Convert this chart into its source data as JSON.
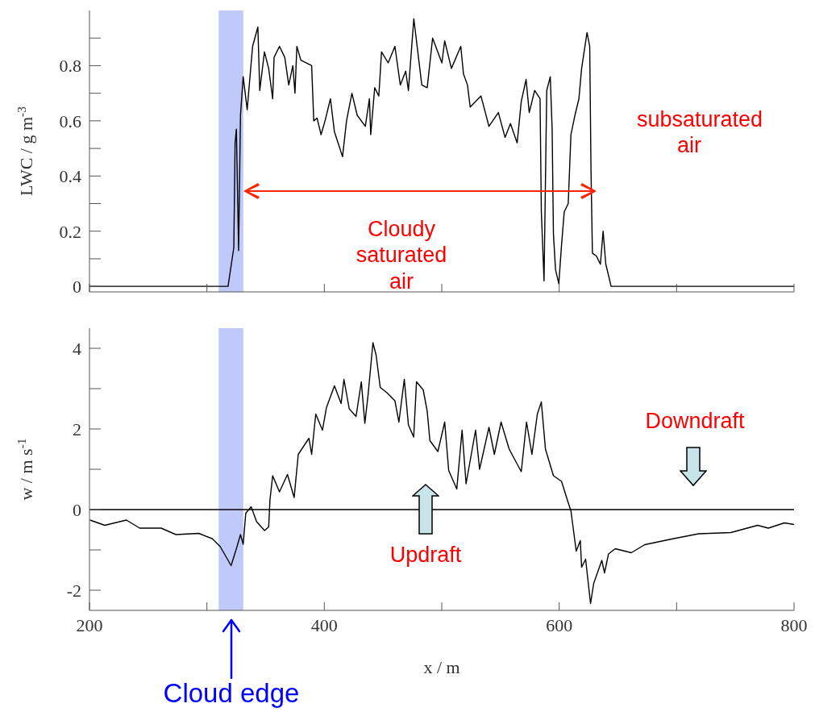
{
  "chart_data": [
    {
      "type": "line",
      "ylabel": "LWC / g m$^{-3}$",
      "tick_labels": "y",
      "xlim": [
        200,
        800
      ],
      "xticks": [
        200,
        {
          "value": 300,
          "label": null
        },
        400,
        {
          "value": 500,
          "label": null
        },
        600,
        {
          "value": 700,
          "label": null
        },
        800
      ],
      "ylim": [
        -0.02,
        1
      ],
      "yticks": [
        0,
        {
          "value": 0.1,
          "label": null
        },
        0.2,
        {
          "value": 0.3,
          "label": null
        },
        0.4,
        {
          "value": 0.5,
          "label": null
        },
        0.6,
        {
          "value": 0.7,
          "label": null
        },
        0.8,
        {
          "value": 0.9,
          "label": null
        }
      ],
      "bands": [
        {
          "axis": "x",
          "from": 310,
          "to": 331,
          "color": "#bfcafa"
        }
      ],
      "annotations": [
        "Cloudy saturated air",
        "subsaturated air"
      ],
      "x": [
        200,
        250,
        300,
        318,
        322.9,
        324,
        325.1,
        327,
        328.6,
        330.9,
        334.3,
        338.9,
        343.4,
        345,
        349,
        352.6,
        356,
        357.2,
        361.8,
        366.3,
        369.7,
        373.2,
        375,
        376.6,
        380,
        389.2,
        391,
        393.8,
        397.2,
        400.6,
        405.2,
        408.6,
        412.5,
        415.5,
        418.9,
        423.5,
        428,
        434.9,
        438.4,
        439.5,
        442.9,
        446.4,
        448.7,
        454.4,
        460.1,
        464.7,
        469.3,
        471.6,
        476.2,
        483,
        487.6,
        492.2,
        500.1,
        502.5,
        508.2,
        516.2,
        518.5,
        521.9,
        524.2,
        533.4,
        540.2,
        548.2,
        553.9,
        558.5,
        564.2,
        567.7,
        571.8,
        574.5,
        579.1,
        583.7,
        584.8,
        587.1,
        589.4,
        592.4,
        594,
        595.1,
        596.9,
        599.7,
        602,
        604.3,
        607.7,
        610,
        613.4,
        616.8,
        619.1,
        623.7,
        626,
        627.1,
        628.3,
        631.7,
        635.1,
        637.4,
        639.7,
        642,
        644.2,
        700,
        800
      ],
      "series": [
        {
          "color": "#000000",
          "values": [
            0,
            0,
            0,
            0,
            0.14,
            0.52,
            0.57,
            0.13,
            0.62,
            0.76,
            0.64,
            0.87,
            0.94,
            0.71,
            0.85,
            0.79,
            0.68,
            0.83,
            0.87,
            0.83,
            0.73,
            0.8,
            0.7,
            0.87,
            0.82,
            0.8,
            0.6,
            0.61,
            0.55,
            0.6,
            0.68,
            0.56,
            0.51,
            0.47,
            0.6,
            0.7,
            0.62,
            0.58,
            0.68,
            0.55,
            0.72,
            0.69,
            0.85,
            0.81,
            0.87,
            0.73,
            0.78,
            0.71,
            0.97,
            0.73,
            0.72,
            0.9,
            0.81,
            0.89,
            0.79,
            0.87,
            0.77,
            0.73,
            0.65,
            0.69,
            0.58,
            0.63,
            0.54,
            0.59,
            0.52,
            0.67,
            0.75,
            0.63,
            0.71,
            0.68,
            0.27,
            0.02,
            0.71,
            0.76,
            0.57,
            0.19,
            0.06,
            0.01,
            0.15,
            0.27,
            0.3,
            0.55,
            0.62,
            0.68,
            0.79,
            0.92,
            0.87,
            0.42,
            0.12,
            0.11,
            0.08,
            0.2,
            0.08,
            0.04,
            0,
            0,
            0
          ]
        }
      ]
    },
    {
      "type": "line",
      "ylabel": "w / m s$^{-1}$",
      "xlabel": "x / m",
      "xlim": [
        200,
        800
      ],
      "xticks": [
        200,
        {
          "value": 300,
          "label": null
        },
        400,
        {
          "value": 500,
          "label": null
        },
        600,
        {
          "value": 700,
          "label": null
        },
        800
      ],
      "ylim": [
        -2.5,
        4.5
      ],
      "yticks": [
        -2,
        {
          "value": -1,
          "label": null
        },
        0,
        {
          "value": 1,
          "label": null
        },
        2,
        {
          "value": 3,
          "label": null
        },
        4
      ],
      "bands": [
        {
          "axis": "x",
          "from": 310,
          "to": 331,
          "color": "#bfcafa"
        }
      ],
      "ref_lines": [
        {
          "axis": "y",
          "value": 0,
          "color": "#000000"
        }
      ],
      "annotations": [
        "Updraft",
        "Downdraft",
        "Cloud edge"
      ],
      "x": [
        200.5,
        213,
        231.4,
        242.8,
        261,
        273.6,
        293.1,
        304.5,
        311.4,
        320.6,
        325.1,
        328.6,
        330.9,
        333.1,
        337.7,
        342.3,
        349.1,
        352.6,
        353.7,
        356,
        361.8,
        368.6,
        374.3,
        377.8,
        386.9,
        389.2,
        392.7,
        398.4,
        401.8,
        408.6,
        414.3,
        416.7,
        421.2,
        427,
        431.5,
        434.5,
        437.2,
        441.4,
        444.1,
        447.6,
        453.3,
        460.1,
        463.5,
        468.1,
        471.6,
        476.1,
        478.5,
        484.2,
        487.6,
        489.9,
        496.7,
        502.5,
        505.9,
        512.8,
        517.3,
        520.7,
        528.8,
        532.2,
        540.2,
        544.8,
        550.5,
        557.4,
        567.7,
        572.2,
        576.8,
        581.4,
        584.8,
        588.3,
        595.1,
        602,
        607.7,
        610,
        614.5,
        618,
        619.1,
        622.5,
        626.7,
        629.4,
        636.3,
        638.6,
        642,
        647.7,
        661.4,
        672.9,
        695.8,
        718.7,
        746.1,
        769,
        778.1,
        791.8,
        800
      ],
      "series": [
        {
          "color": "#000000",
          "values": [
            -0.26,
            -0.39,
            -0.26,
            -0.46,
            -0.46,
            -0.62,
            -0.59,
            -0.72,
            -0.92,
            -1.39,
            -0.97,
            -0.62,
            -0.86,
            -0.09,
            0.07,
            -0.3,
            -0.52,
            -0.43,
            0.24,
            0.84,
            0.44,
            0.87,
            0.3,
            1.37,
            1.77,
            1.37,
            2.37,
            1.97,
            2.53,
            3.07,
            2.63,
            3.23,
            2.5,
            2.31,
            3.17,
            2.14,
            2.83,
            4.14,
            3.83,
            3.03,
            2.9,
            2.7,
            2.17,
            3.23,
            2.1,
            1.8,
            3.17,
            2.97,
            2.44,
            1.71,
            1.44,
            2.17,
            0.97,
            0.51,
            1.97,
            0.64,
            1.97,
            1.0,
            2.04,
            1.37,
            2.17,
            1.5,
            0.94,
            2.17,
            1.37,
            2.37,
            2.67,
            1.5,
            0.84,
            0.7,
            0.17,
            -0.03,
            -1.03,
            -0.77,
            -1.43,
            -1.23,
            -2.33,
            -1.83,
            -1.26,
            -1.57,
            -1.1,
            -0.97,
            -1.07,
            -0.87,
            -0.73,
            -0.6,
            -0.57,
            -0.39,
            -0.46,
            -0.33,
            -0.37
          ]
        }
      ]
    }
  ]
}
